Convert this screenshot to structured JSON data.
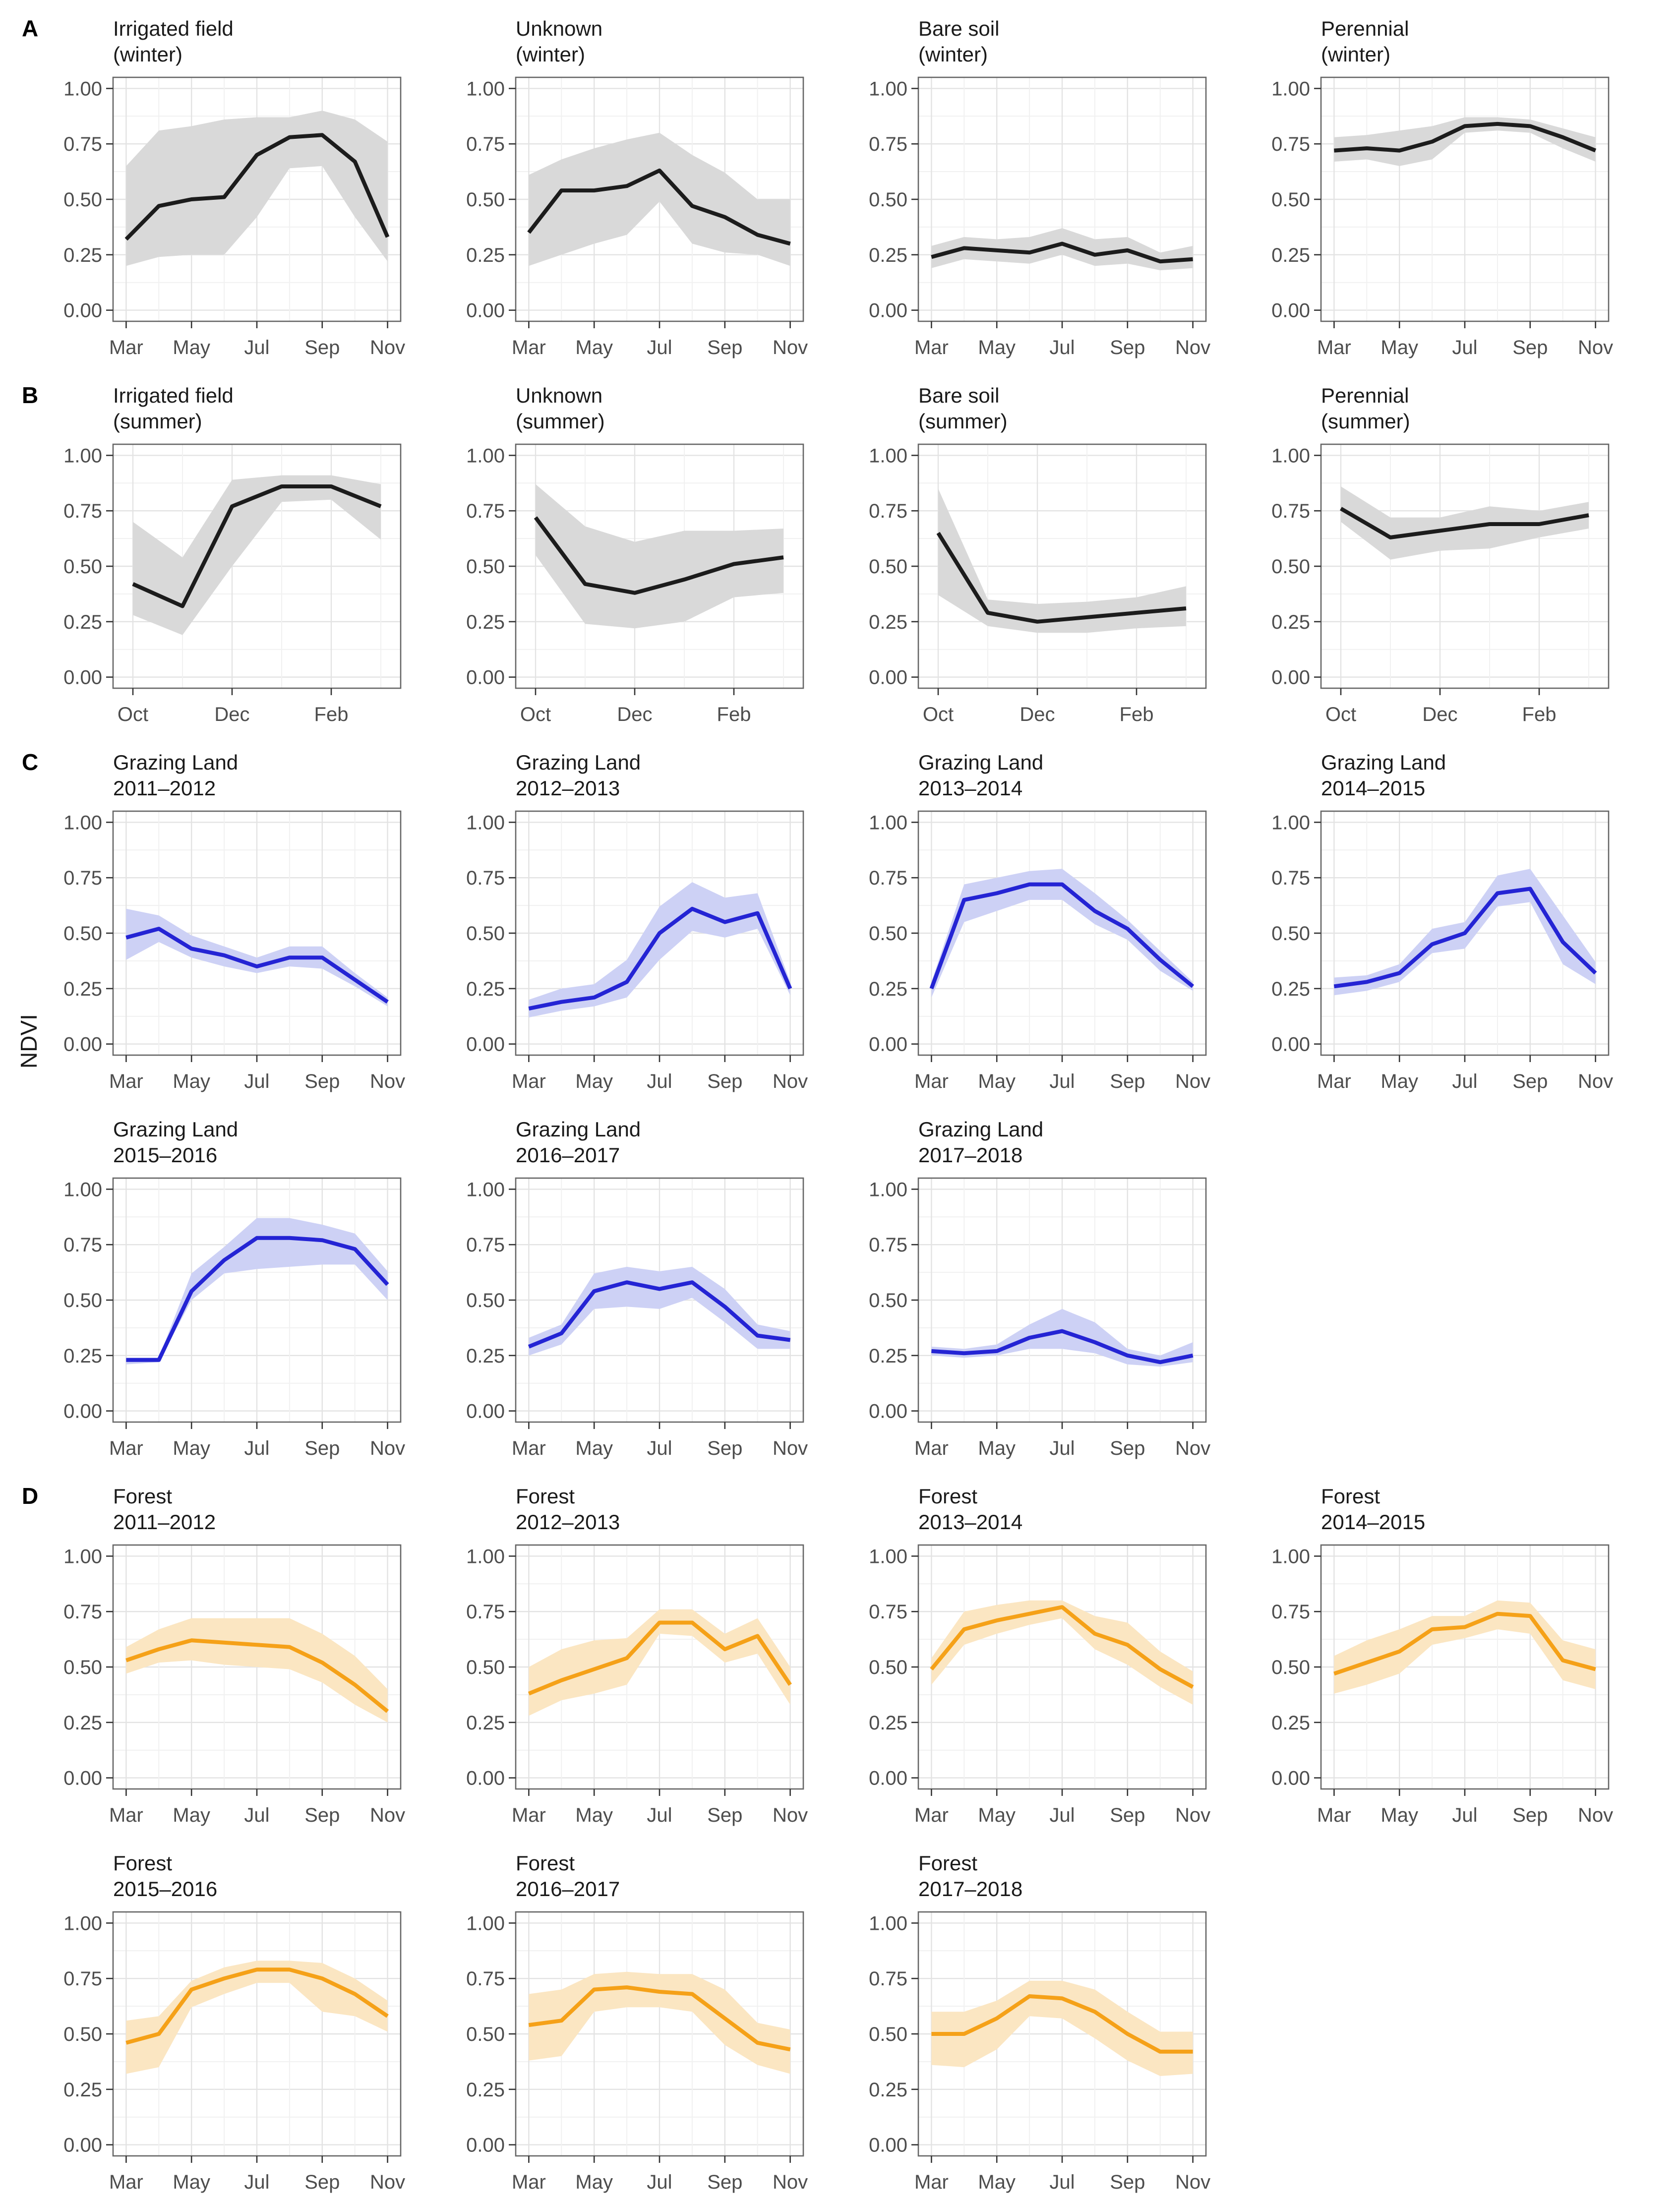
{
  "chart_data": {
    "type": "line",
    "ylabel": "NDVI",
    "ylim": [
      0,
      1
    ],
    "yticks": [
      {
        "v": 0.0,
        "label": "0.00"
      },
      {
        "v": 0.25,
        "label": "0.25"
      },
      {
        "v": 0.5,
        "label": "0.50"
      },
      {
        "v": 0.75,
        "label": "0.75"
      },
      {
        "v": 1.0,
        "label": "1.00"
      }
    ],
    "y_minor": [
      0.125,
      0.375,
      0.625,
      0.875
    ],
    "x_axes": {
      "mar_nov": {
        "months": [
          "Mar",
          "Apr",
          "May",
          "Jun",
          "Jul",
          "Aug",
          "Sep",
          "Oct",
          "Nov"
        ],
        "labeled": [
          "Mar",
          "May",
          "Jul",
          "Sep",
          "Nov"
        ]
      },
      "oct_mar": {
        "months": [
          "Oct",
          "Nov",
          "Dec",
          "Jan",
          "Feb",
          "Mar"
        ],
        "labeled": [
          "Oct",
          "Dec",
          "Feb"
        ]
      }
    },
    "styles": {
      "black": {
        "line": "#1c1c1c",
        "ribbon": "#d9d9d9"
      },
      "blue": {
        "line": "#2424d4",
        "ribbon": "#cdd1f5"
      },
      "orange": {
        "line": "#f5a118",
        "ribbon": "#fbe6c2"
      }
    },
    "grid": {
      "major": "#e3e3e3",
      "minor": "#f1f1f1",
      "border": "#666666",
      "tick": "#333333",
      "tick_text": "#4d4d4d"
    },
    "rows": [
      {
        "section": "A",
        "axis": "mar_nov",
        "style": "black",
        "panels": [
          {
            "title": "Irrigated field",
            "subtitle": "(winter)",
            "mean": [
              0.32,
              0.47,
              0.5,
              0.51,
              0.7,
              0.78,
              0.79,
              0.67,
              0.33
            ],
            "lower": [
              0.2,
              0.24,
              0.25,
              0.25,
              0.42,
              0.64,
              0.65,
              0.42,
              0.22
            ],
            "upper": [
              0.65,
              0.81,
              0.83,
              0.86,
              0.87,
              0.87,
              0.9,
              0.86,
              0.76
            ]
          },
          {
            "title": "Unknown",
            "subtitle": "(winter)",
            "mean": [
              0.35,
              0.54,
              0.54,
              0.56,
              0.63,
              0.47,
              0.42,
              0.34,
              0.3
            ],
            "lower": [
              0.2,
              0.25,
              0.3,
              0.34,
              0.49,
              0.3,
              0.26,
              0.25,
              0.2
            ],
            "upper": [
              0.61,
              0.68,
              0.73,
              0.77,
              0.8,
              0.7,
              0.62,
              0.5,
              0.5
            ]
          },
          {
            "title": "Bare soil",
            "subtitle": "(winter)",
            "mean": [
              0.24,
              0.28,
              0.27,
              0.26,
              0.3,
              0.25,
              0.27,
              0.22,
              0.23
            ],
            "lower": [
              0.19,
              0.23,
              0.22,
              0.21,
              0.25,
              0.2,
              0.21,
              0.18,
              0.19
            ],
            "upper": [
              0.29,
              0.33,
              0.32,
              0.33,
              0.37,
              0.32,
              0.33,
              0.26,
              0.29
            ]
          },
          {
            "title": "Perennial",
            "subtitle": "(winter)",
            "mean": [
              0.72,
              0.73,
              0.72,
              0.76,
              0.83,
              0.84,
              0.83,
              0.78,
              0.72
            ],
            "lower": [
              0.67,
              0.68,
              0.65,
              0.68,
              0.8,
              0.81,
              0.8,
              0.73,
              0.67
            ],
            "upper": [
              0.78,
              0.79,
              0.81,
              0.83,
              0.87,
              0.87,
              0.86,
              0.82,
              0.78
            ]
          }
        ]
      },
      {
        "section": "B",
        "axis": "oct_mar",
        "style": "black",
        "panels": [
          {
            "title": "Irrigated field",
            "subtitle": "(summer)",
            "mean": [
              0.42,
              0.32,
              0.77,
              0.86,
              0.86,
              0.77
            ],
            "lower": [
              0.28,
              0.19,
              0.5,
              0.79,
              0.8,
              0.62
            ],
            "upper": [
              0.7,
              0.54,
              0.89,
              0.91,
              0.91,
              0.87
            ]
          },
          {
            "title": "Unknown",
            "subtitle": "(summer)",
            "mean": [
              0.72,
              0.42,
              0.38,
              0.44,
              0.51,
              0.54
            ],
            "lower": [
              0.55,
              0.24,
              0.22,
              0.25,
              0.36,
              0.38
            ],
            "upper": [
              0.87,
              0.68,
              0.61,
              0.66,
              0.66,
              0.67
            ]
          },
          {
            "title": "Bare soil",
            "subtitle": "(summer)",
            "mean": [
              0.65,
              0.29,
              0.25,
              0.27,
              0.29,
              0.31
            ],
            "lower": [
              0.37,
              0.23,
              0.2,
              0.2,
              0.22,
              0.23
            ],
            "upper": [
              0.85,
              0.35,
              0.33,
              0.34,
              0.36,
              0.41
            ]
          },
          {
            "title": "Perennial",
            "subtitle": "(summer)",
            "mean": [
              0.76,
              0.63,
              0.66,
              0.69,
              0.69,
              0.73
            ],
            "lower": [
              0.7,
              0.53,
              0.57,
              0.58,
              0.63,
              0.67
            ],
            "upper": [
              0.86,
              0.72,
              0.72,
              0.77,
              0.75,
              0.79
            ]
          }
        ]
      },
      {
        "section": "C",
        "axis": "mar_nov",
        "style": "blue",
        "panels": [
          {
            "title": "Grazing Land",
            "subtitle": "2011–2012",
            "mean": [
              0.48,
              0.52,
              0.43,
              0.4,
              0.35,
              0.39,
              0.39,
              0.29,
              0.19
            ],
            "lower": [
              0.38,
              0.46,
              0.39,
              0.35,
              0.32,
              0.35,
              0.34,
              0.26,
              0.17
            ],
            "upper": [
              0.61,
              0.58,
              0.49,
              0.44,
              0.39,
              0.44,
              0.44,
              0.32,
              0.21
            ]
          },
          {
            "title": "Grazing Land",
            "subtitle": "2012–2013",
            "mean": [
              0.16,
              0.19,
              0.21,
              0.28,
              0.5,
              0.61,
              0.55,
              0.59,
              0.25
            ],
            "lower": [
              0.12,
              0.15,
              0.17,
              0.21,
              0.38,
              0.51,
              0.48,
              0.52,
              0.22
            ],
            "upper": [
              0.2,
              0.25,
              0.27,
              0.38,
              0.62,
              0.73,
              0.66,
              0.68,
              0.28
            ]
          },
          {
            "title": "Grazing Land",
            "subtitle": "2013–2014",
            "mean": [
              0.25,
              0.65,
              0.68,
              0.72,
              0.72,
              0.6,
              0.52,
              0.38,
              0.26
            ],
            "lower": [
              0.21,
              0.55,
              0.6,
              0.65,
              0.65,
              0.54,
              0.47,
              0.33,
              0.24
            ],
            "upper": [
              0.28,
              0.72,
              0.75,
              0.78,
              0.79,
              0.68,
              0.56,
              0.42,
              0.28
            ]
          },
          {
            "title": "Grazing Land",
            "subtitle": "2014–2015",
            "mean": [
              0.26,
              0.28,
              0.32,
              0.45,
              0.5,
              0.68,
              0.7,
              0.46,
              0.32
            ],
            "lower": [
              0.22,
              0.24,
              0.28,
              0.41,
              0.43,
              0.62,
              0.64,
              0.36,
              0.27
            ],
            "upper": [
              0.3,
              0.31,
              0.36,
              0.52,
              0.55,
              0.76,
              0.79,
              0.58,
              0.37
            ]
          }
        ]
      },
      {
        "section": "",
        "axis": "mar_nov",
        "style": "blue",
        "panels": [
          {
            "title": "Grazing Land",
            "subtitle": "2015–2016",
            "mean": [
              0.23,
              0.23,
              0.54,
              0.68,
              0.78,
              0.78,
              0.77,
              0.73,
              0.57
            ],
            "lower": [
              0.21,
              0.22,
              0.5,
              0.62,
              0.64,
              0.65,
              0.66,
              0.66,
              0.5
            ],
            "upper": [
              0.24,
              0.24,
              0.62,
              0.74,
              0.87,
              0.87,
              0.84,
              0.8,
              0.63
            ]
          },
          {
            "title": "Grazing Land",
            "subtitle": "2016–2017",
            "mean": [
              0.29,
              0.35,
              0.54,
              0.58,
              0.55,
              0.58,
              0.47,
              0.34,
              0.32
            ],
            "lower": [
              0.25,
              0.3,
              0.46,
              0.47,
              0.46,
              0.51,
              0.4,
              0.28,
              0.28
            ],
            "upper": [
              0.33,
              0.39,
              0.62,
              0.65,
              0.63,
              0.65,
              0.55,
              0.39,
              0.36
            ]
          },
          {
            "title": "Grazing Land",
            "subtitle": "2017–2018",
            "mean": [
              0.27,
              0.26,
              0.27,
              0.33,
              0.36,
              0.31,
              0.25,
              0.22,
              0.25
            ],
            "lower": [
              0.25,
              0.24,
              0.25,
              0.28,
              0.28,
              0.26,
              0.21,
              0.2,
              0.22
            ],
            "upper": [
              0.29,
              0.28,
              0.3,
              0.39,
              0.46,
              0.4,
              0.28,
              0.25,
              0.31
            ]
          }
        ]
      },
      {
        "section": "D",
        "axis": "mar_nov",
        "style": "orange",
        "panels": [
          {
            "title": "Forest",
            "subtitle": "2011–2012",
            "mean": [
              0.53,
              0.58,
              0.62,
              0.61,
              0.6,
              0.59,
              0.52,
              0.42,
              0.3
            ],
            "lower": [
              0.47,
              0.52,
              0.53,
              0.51,
              0.5,
              0.49,
              0.43,
              0.33,
              0.25
            ],
            "upper": [
              0.59,
              0.67,
              0.72,
              0.72,
              0.72,
              0.72,
              0.65,
              0.55,
              0.4
            ]
          },
          {
            "title": "Forest",
            "subtitle": "2012–2013",
            "mean": [
              0.38,
              0.44,
              0.49,
              0.54,
              0.7,
              0.7,
              0.58,
              0.64,
              0.42
            ],
            "lower": [
              0.28,
              0.35,
              0.38,
              0.42,
              0.65,
              0.64,
              0.52,
              0.56,
              0.33
            ],
            "upper": [
              0.5,
              0.58,
              0.62,
              0.63,
              0.76,
              0.76,
              0.65,
              0.72,
              0.5
            ]
          },
          {
            "title": "Forest",
            "subtitle": "2013–2014",
            "mean": [
              0.49,
              0.67,
              0.71,
              0.74,
              0.77,
              0.65,
              0.6,
              0.49,
              0.41
            ],
            "lower": [
              0.42,
              0.6,
              0.65,
              0.69,
              0.72,
              0.58,
              0.51,
              0.41,
              0.33
            ],
            "upper": [
              0.54,
              0.75,
              0.78,
              0.8,
              0.8,
              0.73,
              0.7,
              0.57,
              0.48
            ]
          },
          {
            "title": "Forest",
            "subtitle": "2014–2015",
            "mean": [
              0.47,
              0.52,
              0.57,
              0.67,
              0.68,
              0.74,
              0.73,
              0.53,
              0.49
            ],
            "lower": [
              0.38,
              0.42,
              0.47,
              0.6,
              0.63,
              0.67,
              0.65,
              0.44,
              0.4
            ],
            "upper": [
              0.55,
              0.62,
              0.67,
              0.73,
              0.73,
              0.8,
              0.79,
              0.62,
              0.58
            ]
          }
        ]
      },
      {
        "section": "",
        "axis": "mar_nov",
        "style": "orange",
        "panels": [
          {
            "title": "Forest",
            "subtitle": "2015–2016",
            "mean": [
              0.46,
              0.5,
              0.7,
              0.75,
              0.79,
              0.79,
              0.75,
              0.68,
              0.58
            ],
            "lower": [
              0.32,
              0.35,
              0.62,
              0.68,
              0.73,
              0.73,
              0.6,
              0.58,
              0.51
            ],
            "upper": [
              0.56,
              0.58,
              0.74,
              0.8,
              0.83,
              0.83,
              0.82,
              0.75,
              0.65
            ]
          },
          {
            "title": "Forest",
            "subtitle": "2016–2017",
            "mean": [
              0.54,
              0.56,
              0.7,
              0.71,
              0.69,
              0.68,
              0.57,
              0.46,
              0.43
            ],
            "lower": [
              0.38,
              0.4,
              0.6,
              0.62,
              0.62,
              0.6,
              0.45,
              0.36,
              0.32
            ],
            "upper": [
              0.68,
              0.7,
              0.77,
              0.78,
              0.77,
              0.77,
              0.7,
              0.55,
              0.52
            ]
          },
          {
            "title": "Forest",
            "subtitle": "2017–2018",
            "mean": [
              0.5,
              0.5,
              0.57,
              0.67,
              0.66,
              0.6,
              0.5,
              0.42,
              0.42
            ],
            "lower": [
              0.36,
              0.35,
              0.43,
              0.58,
              0.57,
              0.48,
              0.38,
              0.31,
              0.32
            ],
            "upper": [
              0.6,
              0.6,
              0.65,
              0.74,
              0.74,
              0.7,
              0.6,
              0.51,
              0.51
            ]
          }
        ]
      }
    ]
  }
}
